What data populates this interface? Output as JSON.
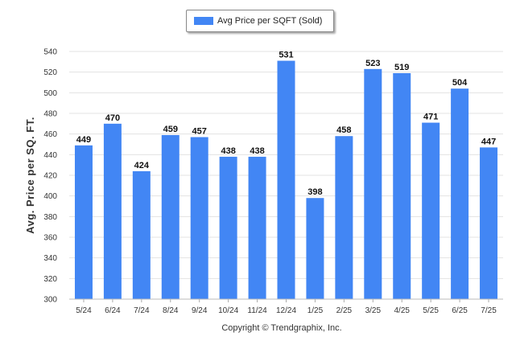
{
  "chart_data": {
    "type": "bar",
    "categories": [
      "5/24",
      "6/24",
      "7/24",
      "8/24",
      "9/24",
      "10/24",
      "11/24",
      "12/24",
      "1/25",
      "2/25",
      "3/25",
      "4/25",
      "5/25",
      "6/25",
      "7/25"
    ],
    "series": [
      {
        "name": "Avg Price per SQFT (Sold)",
        "values": [
          449,
          470,
          424,
          459,
          457,
          438,
          438,
          531,
          398,
          458,
          523,
          519,
          471,
          504,
          447
        ],
        "color": "#4286f4"
      }
    ],
    "ylabel": "Avg. Price per SQ. FT.",
    "xlabel": "",
    "ylim": [
      300,
      540
    ],
    "yticks": [
      300,
      320,
      340,
      360,
      380,
      400,
      420,
      440,
      460,
      480,
      500,
      520,
      540
    ],
    "grid": true,
    "legend_position": "top-center"
  },
  "copyright": "Copyright © Trendgraphix, Inc."
}
